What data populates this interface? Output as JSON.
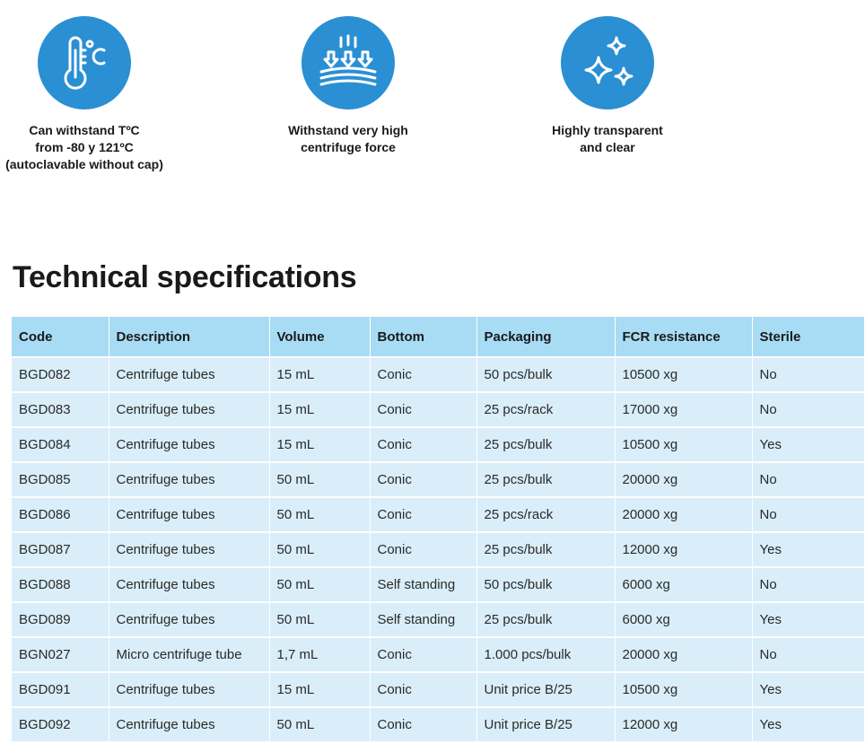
{
  "features": [
    {
      "icon": "thermometer-icon",
      "lines": [
        "Can withstand TºC",
        "from -80 y 121ºC",
        "(autoclavable without cap)"
      ]
    },
    {
      "icon": "centrifuge-force-icon",
      "lines": [
        "Withstand very high",
        "centrifuge force"
      ]
    },
    {
      "icon": "sparkle-icon",
      "lines": [
        "Highly transparent",
        "and clear"
      ]
    }
  ],
  "accent_color": "#2a8fd3",
  "section_title": "Technical specifications",
  "table": {
    "headers": [
      "Code",
      "Description",
      "Volume",
      "Bottom",
      "Packaging",
      "FCR resistance",
      "Sterile"
    ],
    "rows": [
      [
        "BGD082",
        "Centrifuge tubes",
        "15 mL",
        "Conic",
        "50 pcs/bulk",
        "10500 xg",
        "No"
      ],
      [
        "BGD083",
        "Centrifuge tubes",
        "15 mL",
        "Conic",
        "25 pcs/rack",
        "17000 xg",
        "No"
      ],
      [
        "BGD084",
        "Centrifuge tubes",
        "15 mL",
        "Conic",
        "25 pcs/bulk",
        "10500 xg",
        "Yes"
      ],
      [
        "BGD085",
        "Centrifuge tubes",
        "50 mL",
        "Conic",
        "25 pcs/bulk",
        "20000 xg",
        "No"
      ],
      [
        "BGD086",
        "Centrifuge tubes",
        "50 mL",
        "Conic",
        "25 pcs/rack",
        "20000 xg",
        "No"
      ],
      [
        "BGD087",
        "Centrifuge tubes",
        "50 mL",
        "Conic",
        "25 pcs/bulk",
        "12000 xg",
        "Yes"
      ],
      [
        "BGD088",
        "Centrifuge tubes",
        "50 mL",
        "Self standing",
        "50 pcs/bulk",
        "6000 xg",
        "No"
      ],
      [
        "BGD089",
        "Centrifuge tubes",
        "50 mL",
        "Self standing",
        "25 pcs/bulk",
        "6000 xg",
        "Yes"
      ],
      [
        "BGN027",
        "Micro centrifuge tube",
        "1,7 mL",
        "Conic",
        "1.000 pcs/bulk",
        "20000 xg",
        "No"
      ],
      [
        "BGD091",
        "Centrifuge tubes",
        "15 mL",
        "Conic",
        "Unit price B/25",
        "10500 xg",
        "Yes"
      ],
      [
        "BGD092",
        "Centrifuge tubes",
        "50 mL",
        "Conic",
        "Unit price B/25",
        "12000 xg",
        "Yes"
      ]
    ]
  }
}
